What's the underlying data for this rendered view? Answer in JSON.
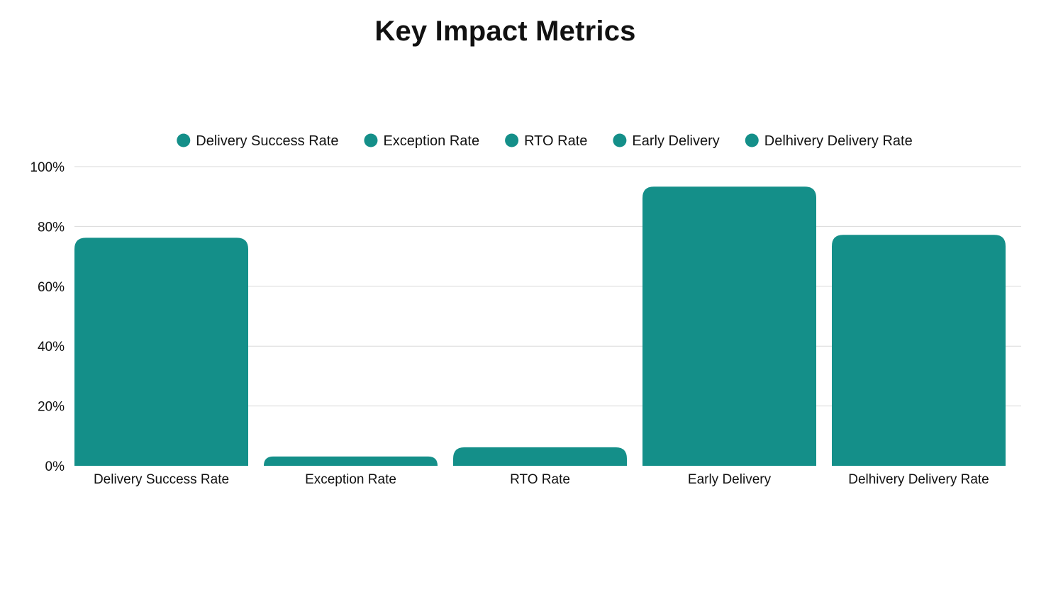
{
  "chart_data": {
    "type": "bar",
    "title": "Key Impact Metrics",
    "categories": [
      "Delivery Success Rate",
      "Exception Rate",
      "RTO Rate",
      "Early Delivery",
      "Delhivery Delivery Rate"
    ],
    "series": [
      {
        "name": "Delivery Success Rate",
        "values": [
          76.2,
          3.1,
          6.2,
          93.3,
          77.2
        ]
      }
    ],
    "legend": [
      "Delivery Success Rate",
      "Exception Rate",
      "RTO Rate",
      "Early Delivery",
      "Delhivery Delivery Rate"
    ],
    "legend_position": "top",
    "y_ticks": [
      "0%",
      "20%",
      "40%",
      "60%",
      "80%",
      "100%"
    ],
    "ylim": [
      0,
      100
    ],
    "xlabel": "",
    "ylabel": "",
    "grid": true,
    "bar_color": "#148f89",
    "grid_color": "#d9d9d9"
  }
}
